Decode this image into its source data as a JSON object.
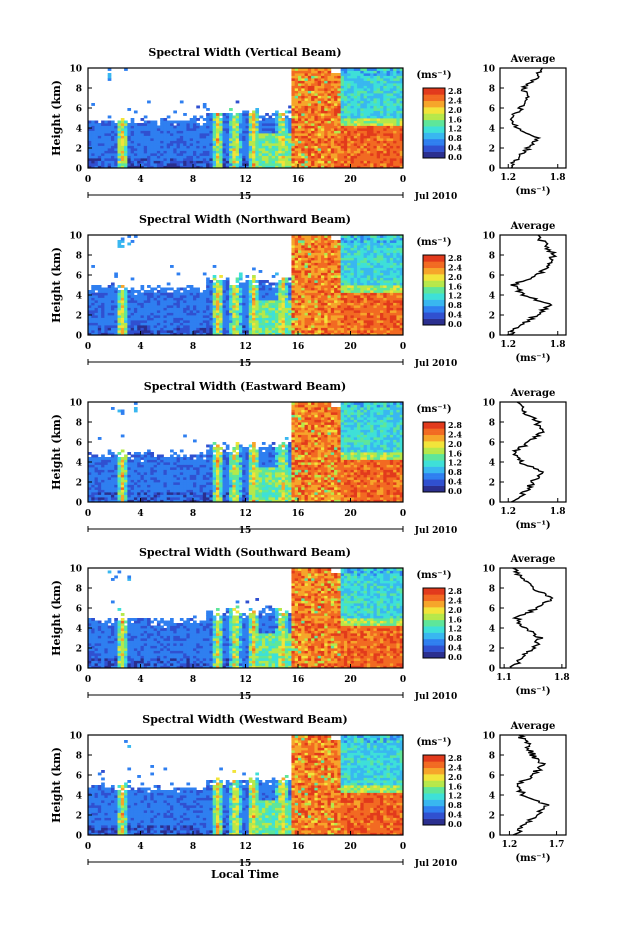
{
  "chart_data": [
    {
      "type": "heatmap",
      "title": "Spectral Width (Vertical Beam)",
      "ylabel": "Height (km)",
      "ylim": [
        0,
        10
      ],
      "yticks": [
        "0",
        "2",
        "4",
        "6",
        "8",
        "10"
      ],
      "xlim": [
        0,
        24
      ],
      "xticks": [
        "0",
        "4",
        "8",
        "12",
        "16",
        "20",
        "0"
      ],
      "day_label": "15",
      "date_label": "Jul 2010",
      "colorbar": {
        "unit": "(ms⁻¹)",
        "ticks": [
          "2.8",
          "2.4",
          "2.0",
          "1.6",
          "1.2",
          "0.8",
          "0.4",
          "0.0"
        ]
      },
      "profile": {
        "title": "Average",
        "xlabel": "(ms⁻¹)",
        "xticks": [
          "1.2",
          "1.8"
        ],
        "xlim": [
          1.1,
          1.9
        ],
        "heights": [
          0,
          1,
          2,
          3,
          4,
          5,
          6,
          7,
          8,
          9,
          10
        ],
        "values": [
          1.25,
          1.3,
          1.45,
          1.55,
          1.3,
          1.22,
          1.35,
          1.45,
          1.38,
          1.55,
          1.6
        ]
      }
    },
    {
      "type": "heatmap",
      "title": "Spectral Width (Northward Beam)",
      "ylabel": "Height (km)",
      "ylim": [
        0,
        10
      ],
      "yticks": [
        "0",
        "2",
        "4",
        "6",
        "8",
        "10"
      ],
      "xlim": [
        0,
        24
      ],
      "xticks": [
        "0",
        "4",
        "8",
        "12",
        "16",
        "20",
        "0"
      ],
      "day_label": "15",
      "date_label": "Jul 2010",
      "colorbar": {
        "unit": "(ms⁻¹)",
        "ticks": [
          "2.8",
          "2.4",
          "2.0",
          "1.6",
          "1.2",
          "0.8",
          "0.4",
          "0.0"
        ]
      },
      "profile": {
        "title": "Average",
        "xlabel": "(ms⁻¹)",
        "xticks": [
          "1.2",
          "1.8"
        ],
        "xlim": [
          1.1,
          1.9
        ],
        "heights": [
          0,
          1,
          2,
          3,
          4,
          5,
          6,
          7,
          8,
          9,
          10
        ],
        "values": [
          1.2,
          1.35,
          1.55,
          1.7,
          1.4,
          1.25,
          1.55,
          1.7,
          1.75,
          1.65,
          1.55
        ]
      }
    },
    {
      "type": "heatmap",
      "title": "Spectral Width (Eastward Beam)",
      "ylabel": "Height (km)",
      "ylim": [
        0,
        10
      ],
      "yticks": [
        "0",
        "2",
        "4",
        "6",
        "8",
        "10"
      ],
      "xlim": [
        0,
        24
      ],
      "xticks": [
        "0",
        "4",
        "8",
        "12",
        "16",
        "20",
        "0"
      ],
      "day_label": "15",
      "date_label": "Jul 2010",
      "colorbar": {
        "unit": "(ms⁻¹)",
        "ticks": [
          "2.8",
          "2.4",
          "2.0",
          "1.6",
          "1.2",
          "0.8",
          "0.4",
          "0.0"
        ]
      },
      "profile": {
        "title": "Average",
        "xlabel": "(ms⁻¹)",
        "xticks": [
          "1.2",
          "1.8"
        ],
        "xlim": [
          1.1,
          1.9
        ],
        "heights": [
          0,
          1,
          2,
          3,
          4,
          5,
          6,
          7,
          8,
          9,
          10
        ],
        "values": [
          1.25,
          1.4,
          1.5,
          1.6,
          1.35,
          1.28,
          1.45,
          1.6,
          1.55,
          1.4,
          1.3
        ]
      }
    },
    {
      "type": "heatmap",
      "title": "Spectral Width (Southward Beam)",
      "ylabel": "Height (km)",
      "ylim": [
        0,
        10
      ],
      "yticks": [
        "0",
        "2",
        "4",
        "6",
        "8",
        "10"
      ],
      "xlim": [
        0,
        24
      ],
      "xticks": [
        "0",
        "4",
        "8",
        "12",
        "16",
        "20",
        "0"
      ],
      "day_label": "15",
      "date_label": "Jul 2010",
      "colorbar": {
        "unit": "(ms⁻¹)",
        "ticks": [
          "2.8",
          "2.4",
          "2.0",
          "1.6",
          "1.2",
          "0.8",
          "0.4",
          "0.0"
        ]
      },
      "profile": {
        "title": "Average",
        "xlabel": "(ms⁻¹)",
        "xticks": [
          "1.1",
          "1.8"
        ],
        "xlim": [
          1.05,
          1.85
        ],
        "heights": [
          0,
          1,
          2,
          3,
          4,
          5,
          6,
          7,
          8,
          9,
          10
        ],
        "values": [
          1.2,
          1.3,
          1.45,
          1.55,
          1.35,
          1.25,
          1.5,
          1.7,
          1.45,
          1.3,
          1.2
        ]
      }
    },
    {
      "type": "heatmap",
      "title": "Spectral Width (Westward Beam)",
      "ylabel": "Height (km)",
      "ylim": [
        0,
        10
      ],
      "yticks": [
        "0",
        "2",
        "4",
        "6",
        "8",
        "10"
      ],
      "xlim": [
        0,
        24
      ],
      "xticks": [
        "0",
        "4",
        "8",
        "12",
        "16",
        "20",
        "0"
      ],
      "day_label": "15",
      "date_label": "Jul 2010",
      "xlabel": "Local Time",
      "colorbar": {
        "unit": "(ms⁻¹)",
        "ticks": [
          "2.8",
          "2.4",
          "2.0",
          "1.6",
          "1.2",
          "0.8",
          "0.4",
          "0.0"
        ]
      },
      "profile": {
        "title": "Average",
        "xlabel": "(ms⁻¹)",
        "xticks": [
          "1.2",
          "1.7"
        ],
        "xlim": [
          1.1,
          1.8
        ],
        "heights": [
          0,
          1,
          2,
          3,
          4,
          5,
          6,
          7,
          8,
          9,
          10
        ],
        "values": [
          1.25,
          1.35,
          1.5,
          1.6,
          1.35,
          1.28,
          1.45,
          1.55,
          1.45,
          1.4,
          1.3
        ]
      }
    }
  ],
  "colormap": [
    "#2b2f8f",
    "#3050d0",
    "#2f7ff0",
    "#39b7f0",
    "#3ee0d8",
    "#5ee69a",
    "#b6e84a",
    "#f2e43a",
    "#f6a52a",
    "#f26a22",
    "#e23a1c"
  ]
}
